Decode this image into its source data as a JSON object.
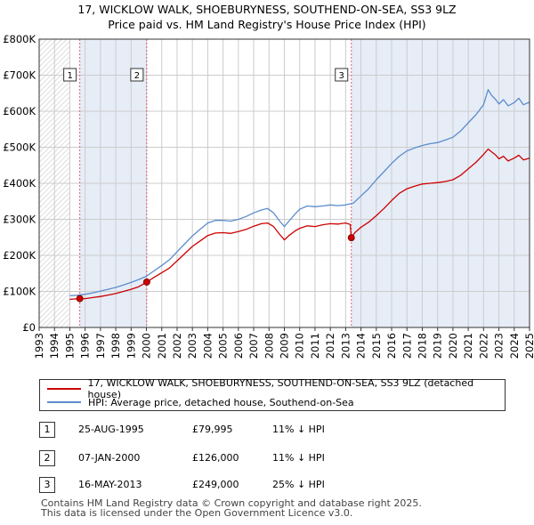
{
  "title_line1": "17, WICKLOW WALK, SHOEBURYNESS, SOUTHEND-ON-SEA, SS3 9LZ",
  "title_line2": "Price paid vs. HM Land Registry's House Price Index (HPI)",
  "legend": {
    "red_label": "17, WICKLOW WALK, SHOEBURYNESS, SOUTHEND-ON-SEA, SS3 9LZ (detached house)",
    "blue_label": "HPI: Average price, detached house, Southend-on-Sea"
  },
  "sales": [
    {
      "num": "1",
      "date": "25-AUG-1995",
      "price": "£79,995",
      "hpi": "11% ↓ HPI"
    },
    {
      "num": "2",
      "date": "07-JAN-2000",
      "price": "£126,000",
      "hpi": "11% ↓ HPI"
    },
    {
      "num": "3",
      "date": "16-MAY-2013",
      "price": "£249,000",
      "hpi": "25% ↓ HPI"
    }
  ],
  "footer_line1": "Contains HM Land Registry data © Crown copyright and database right 2025.",
  "footer_line2": "This data is licensed under the Open Government Licence v3.0.",
  "colors": {
    "red": "#cc0000",
    "blue": "#5b8ccc",
    "shade": "#e6edf7",
    "hatch": "#c8c8c8",
    "grid": "#cccccc",
    "vline": "#e06070"
  },
  "chart_data": {
    "type": "line",
    "title": "Price paid vs. HM Land Registry's House Price Index (HPI)",
    "xlabel": "",
    "ylabel": "",
    "xlim": [
      1993,
      2025
    ],
    "ylim": [
      0,
      800000
    ],
    "y_ticks": [
      0,
      100000,
      200000,
      300000,
      400000,
      500000,
      600000,
      700000,
      800000
    ],
    "y_tick_labels": [
      "£0",
      "£100K",
      "£200K",
      "£300K",
      "£400K",
      "£500K",
      "£600K",
      "£700K",
      "£800K"
    ],
    "x_ticks": [
      1993,
      1994,
      1995,
      1996,
      1997,
      1998,
      1999,
      2000,
      2001,
      2002,
      2003,
      2004,
      2005,
      2006,
      2007,
      2008,
      2009,
      2010,
      2011,
      2012,
      2013,
      2014,
      2015,
      2016,
      2017,
      2018,
      2019,
      2020,
      2021,
      2022,
      2023,
      2024,
      2025
    ],
    "grid": true,
    "no_data_before": 1995.0,
    "shaded_ranges": [
      [
        1995.65,
        2000.02
      ],
      [
        2013.37,
        2025
      ]
    ],
    "series": [
      {
        "name": "17, WICKLOW WALK, SHOEBURYNESS, SOUTHEND-ON-SEA, SS3 9LZ (detached house)",
        "color": "red",
        "x": [
          1995.0,
          1995.65,
          1996.0,
          1996.5,
          1997.0,
          1997.5,
          1998.0,
          1998.5,
          1999.0,
          1999.5,
          2000.02,
          2000.5,
          2001.0,
          2001.5,
          2002.0,
          2002.5,
          2003.0,
          2003.5,
          2004.0,
          2004.5,
          2005.0,
          2005.5,
          2006.0,
          2006.5,
          2007.0,
          2007.5,
          2007.9,
          2008.3,
          2008.7,
          2009.0,
          2009.3,
          2009.7,
          2010.0,
          2010.5,
          2011.0,
          2011.5,
          2012.0,
          2012.5,
          2013.0,
          2013.3,
          2013.37,
          2013.6,
          2014.0,
          2014.5,
          2015.0,
          2015.5,
          2016.0,
          2016.5,
          2017.0,
          2017.5,
          2018.0,
          2018.5,
          2019.0,
          2019.5,
          2020.0,
          2020.5,
          2021.0,
          2021.5,
          2022.0,
          2022.3,
          2022.5,
          2022.8,
          2023.0,
          2023.3,
          2023.6,
          2024.0,
          2024.3,
          2024.6,
          2025.0
        ],
        "y": [
          78000,
          79995,
          80000,
          83000,
          86000,
          90000,
          94000,
          100000,
          106000,
          113000,
          126000,
          139000,
          152000,
          165000,
          185000,
          205000,
          225000,
          240000,
          255000,
          262000,
          263000,
          261000,
          266000,
          272000,
          281000,
          288000,
          290000,
          280000,
          258000,
          243000,
          255000,
          268000,
          275000,
          282000,
          280000,
          285000,
          288000,
          287000,
          290000,
          286000,
          249000,
          263000,
          278000,
          292000,
          310000,
          330000,
          352000,
          372000,
          385000,
          392000,
          398000,
          400000,
          402000,
          405000,
          410000,
          422000,
          440000,
          458000,
          480000,
          495000,
          488000,
          478000,
          468000,
          475000,
          462000,
          470000,
          478000,
          465000,
          470000
        ]
      },
      {
        "name": "HPI: Average price, detached house, Southend-on-Sea",
        "color": "blue",
        "x": [
          1995.0,
          1995.5,
          1996.0,
          1996.5,
          1997.0,
          1997.5,
          1998.0,
          1998.5,
          1999.0,
          1999.5,
          2000.0,
          2000.5,
          2001.0,
          2001.5,
          2002.0,
          2002.5,
          2003.0,
          2003.5,
          2004.0,
          2004.5,
          2005.0,
          2005.5,
          2006.0,
          2006.5,
          2007.0,
          2007.5,
          2007.9,
          2008.3,
          2008.7,
          2009.0,
          2009.3,
          2009.7,
          2010.0,
          2010.5,
          2011.0,
          2011.5,
          2012.0,
          2012.5,
          2013.0,
          2013.5,
          2014.0,
          2014.5,
          2015.0,
          2015.5,
          2016.0,
          2016.5,
          2017.0,
          2017.5,
          2018.0,
          2018.5,
          2019.0,
          2019.5,
          2020.0,
          2020.5,
          2021.0,
          2021.5,
          2022.0,
          2022.3,
          2022.5,
          2022.8,
          2023.0,
          2023.3,
          2023.6,
          2024.0,
          2024.3,
          2024.6,
          2025.0
        ],
        "y": [
          88000,
          89500,
          92000,
          96000,
          101000,
          106000,
          111000,
          118000,
          125000,
          133000,
          142000,
          157000,
          172000,
          188000,
          210000,
          232000,
          254000,
          272000,
          290000,
          297000,
          297000,
          295000,
          300000,
          308000,
          318000,
          326000,
          330000,
          318000,
          295000,
          280000,
          295000,
          315000,
          328000,
          337000,
          335000,
          337000,
          340000,
          338000,
          340000,
          345000,
          365000,
          385000,
          410000,
          432000,
          455000,
          475000,
          490000,
          498000,
          505000,
          510000,
          513000,
          520000,
          528000,
          545000,
          568000,
          590000,
          618000,
          660000,
          645000,
          632000,
          620000,
          632000,
          615000,
          624000,
          636000,
          618000,
          625000
        ]
      }
    ],
    "sale_points": [
      {
        "label": "1",
        "x": 1995.65,
        "y": 79995
      },
      {
        "label": "2",
        "x": 2000.02,
        "y": 126000
      },
      {
        "label": "3",
        "x": 2013.37,
        "y": 249000
      }
    ]
  }
}
